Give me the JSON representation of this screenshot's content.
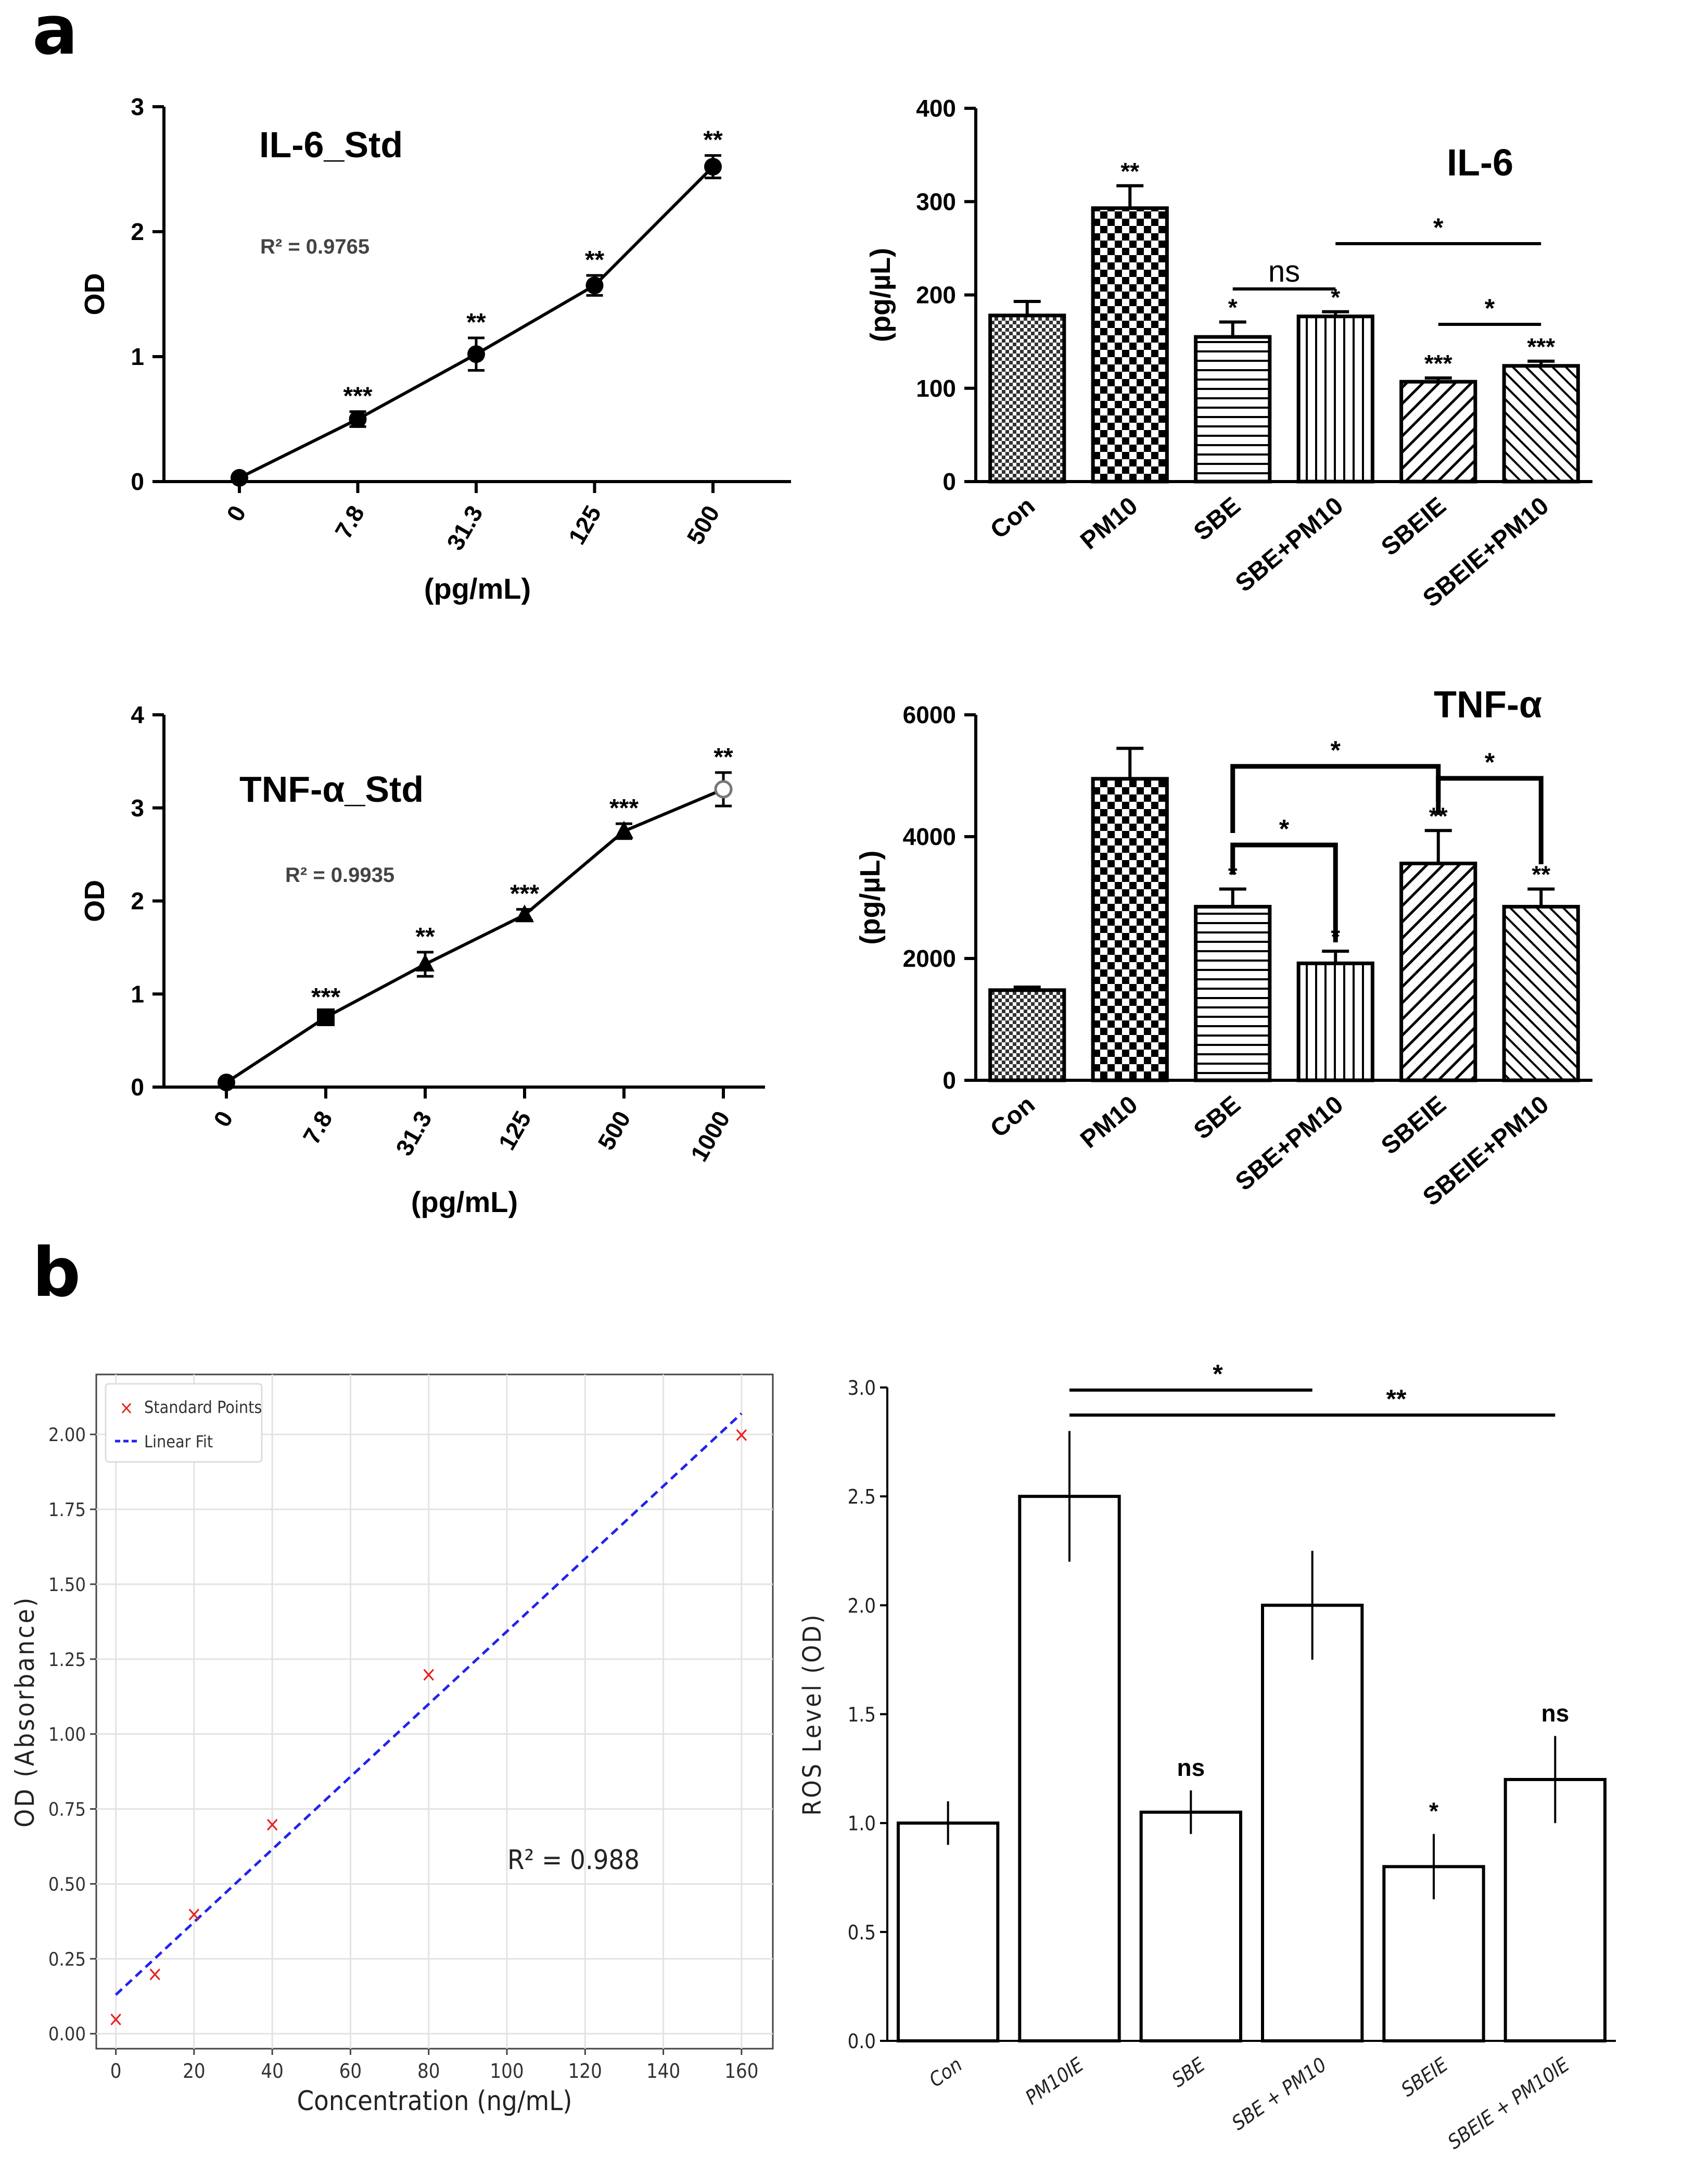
{
  "panel_labels": [
    "a",
    "b"
  ],
  "chart_data": [
    {
      "id": "il6_std",
      "type": "line",
      "title": "IL-6_Std",
      "annotation": "R² = 0.9765",
      "xlabel": "(pg/mL)",
      "ylabel": "OD",
      "categories": [
        "0",
        "7.8",
        "31.3",
        "125",
        "500"
      ],
      "values": [
        0.03,
        0.5,
        1.02,
        1.57,
        2.52
      ],
      "errors": [
        0.02,
        0.06,
        0.13,
        0.08,
        0.09
      ],
      "significance": [
        "",
        "***",
        "**",
        "**",
        "**"
      ],
      "ylim": [
        0,
        3
      ],
      "yticks": [
        "0",
        "1",
        "2",
        "3"
      ]
    },
    {
      "id": "il6_bar",
      "type": "bar",
      "title": "IL-6",
      "xlabel": "",
      "ylabel": "(pg/µL)",
      "categories": [
        "Con",
        "PM10",
        "SBE",
        "SBE+PM10",
        "SBEIE",
        "SBEIE+PM10"
      ],
      "values": [
        178,
        293,
        155,
        177,
        107,
        124
      ],
      "errors": [
        15,
        24,
        16,
        5,
        4,
        5
      ],
      "significance": [
        "",
        "**",
        "*",
        "*",
        "***",
        "***"
      ],
      "comparisons": [
        {
          "from": 2,
          "to": 3,
          "label": "ns"
        },
        {
          "from": 3,
          "to": 5,
          "label": "*"
        },
        {
          "from": 4,
          "to": 5,
          "label": "*"
        }
      ],
      "ylim": [
        0,
        400
      ],
      "yticks": [
        "0",
        "100",
        "200",
        "300",
        "400"
      ]
    },
    {
      "id": "tnf_std",
      "type": "line",
      "title": "TNF-α_Std",
      "annotation": "R² = 0.9935",
      "xlabel": "(pg/mL)",
      "ylabel": "OD",
      "categories": [
        "0",
        "7.8",
        "31.3",
        "125",
        "500",
        "1000"
      ],
      "values": [
        0.05,
        0.75,
        1.32,
        1.85,
        2.75,
        3.2
      ],
      "errors": [
        0.02,
        0.05,
        0.13,
        0.06,
        0.08,
        0.18
      ],
      "significance": [
        "",
        "***",
        "**",
        "***",
        "***",
        "**"
      ],
      "ylim": [
        0,
        4
      ],
      "yticks": [
        "0",
        "1",
        "2",
        "3",
        "4"
      ]
    },
    {
      "id": "tnf_bar",
      "type": "bar",
      "title": "TNF-α",
      "xlabel": "",
      "ylabel": "(pg/µL)",
      "categories": [
        "Con",
        "PM10",
        "SBE",
        "SBE+PM10",
        "SBEIE",
        "SBEIE+PM10"
      ],
      "values": [
        1480,
        4950,
        2850,
        1920,
        3560,
        2850
      ],
      "errors": [
        50,
        500,
        290,
        200,
        540,
        290
      ],
      "significance": [
        "",
        "",
        "*",
        "*",
        "**",
        "**"
      ],
      "comparisons": [
        {
          "from": 2,
          "to": 4,
          "label": "*"
        },
        {
          "from": 2,
          "to": 3,
          "label": "*"
        },
        {
          "from": 4,
          "to": 5,
          "label": "*"
        }
      ],
      "ylim": [
        0,
        6000
      ],
      "yticks": [
        "0",
        "2000",
        "4000",
        "6000"
      ]
    },
    {
      "id": "ros_std",
      "type": "scatter",
      "title": "",
      "xlabel": "Concentration (ng/mL)",
      "ylabel": "OD (Absorbance)",
      "annotation": "R² = 0.988",
      "legend": [
        "Standard Points",
        "Linear Fit"
      ],
      "legend_position": "top-left",
      "grid": true,
      "x": [
        0,
        10,
        20,
        40,
        80,
        160
      ],
      "y": [
        0.05,
        0.2,
        0.4,
        0.7,
        1.2,
        2.0
      ],
      "fit": {
        "x": [
          0,
          160
        ],
        "y": [
          0.13,
          2.07
        ]
      },
      "xlim": [
        -5,
        168
      ],
      "ylim": [
        -0.05,
        2.2
      ],
      "xticks": [
        "0",
        "20",
        "40",
        "60",
        "80",
        "100",
        "120",
        "140",
        "160"
      ],
      "yticks": [
        "0.00",
        "0.25",
        "0.50",
        "0.75",
        "1.00",
        "1.25",
        "1.50",
        "1.75",
        "2.00"
      ],
      "colors": {
        "points": "#e8201c",
        "fit": "#2222ee"
      }
    },
    {
      "id": "ros_bar",
      "type": "bar",
      "title": "",
      "xlabel": "",
      "ylabel": "ROS Level (OD)",
      "categories": [
        "Con",
        "PM10IE",
        "SBE",
        "SBE + PM10",
        "SBEIE",
        "SBEIE + PM10IE"
      ],
      "values": [
        1.0,
        2.5,
        1.05,
        2.0,
        0.8,
        1.2
      ],
      "errors": [
        0.1,
        0.3,
        0.1,
        0.25,
        0.15,
        0.2
      ],
      "significance": [
        "",
        "",
        "ns",
        "",
        "*",
        "ns"
      ],
      "comparisons": [
        {
          "from": 1,
          "to": 3,
          "label": "*"
        },
        {
          "from": 1,
          "to": 5,
          "label": "**"
        }
      ],
      "ylim": [
        0,
        3.0
      ],
      "yticks": [
        "0.0",
        "0.5",
        "1.0",
        "1.5",
        "2.0",
        "2.5",
        "3.0"
      ]
    }
  ]
}
